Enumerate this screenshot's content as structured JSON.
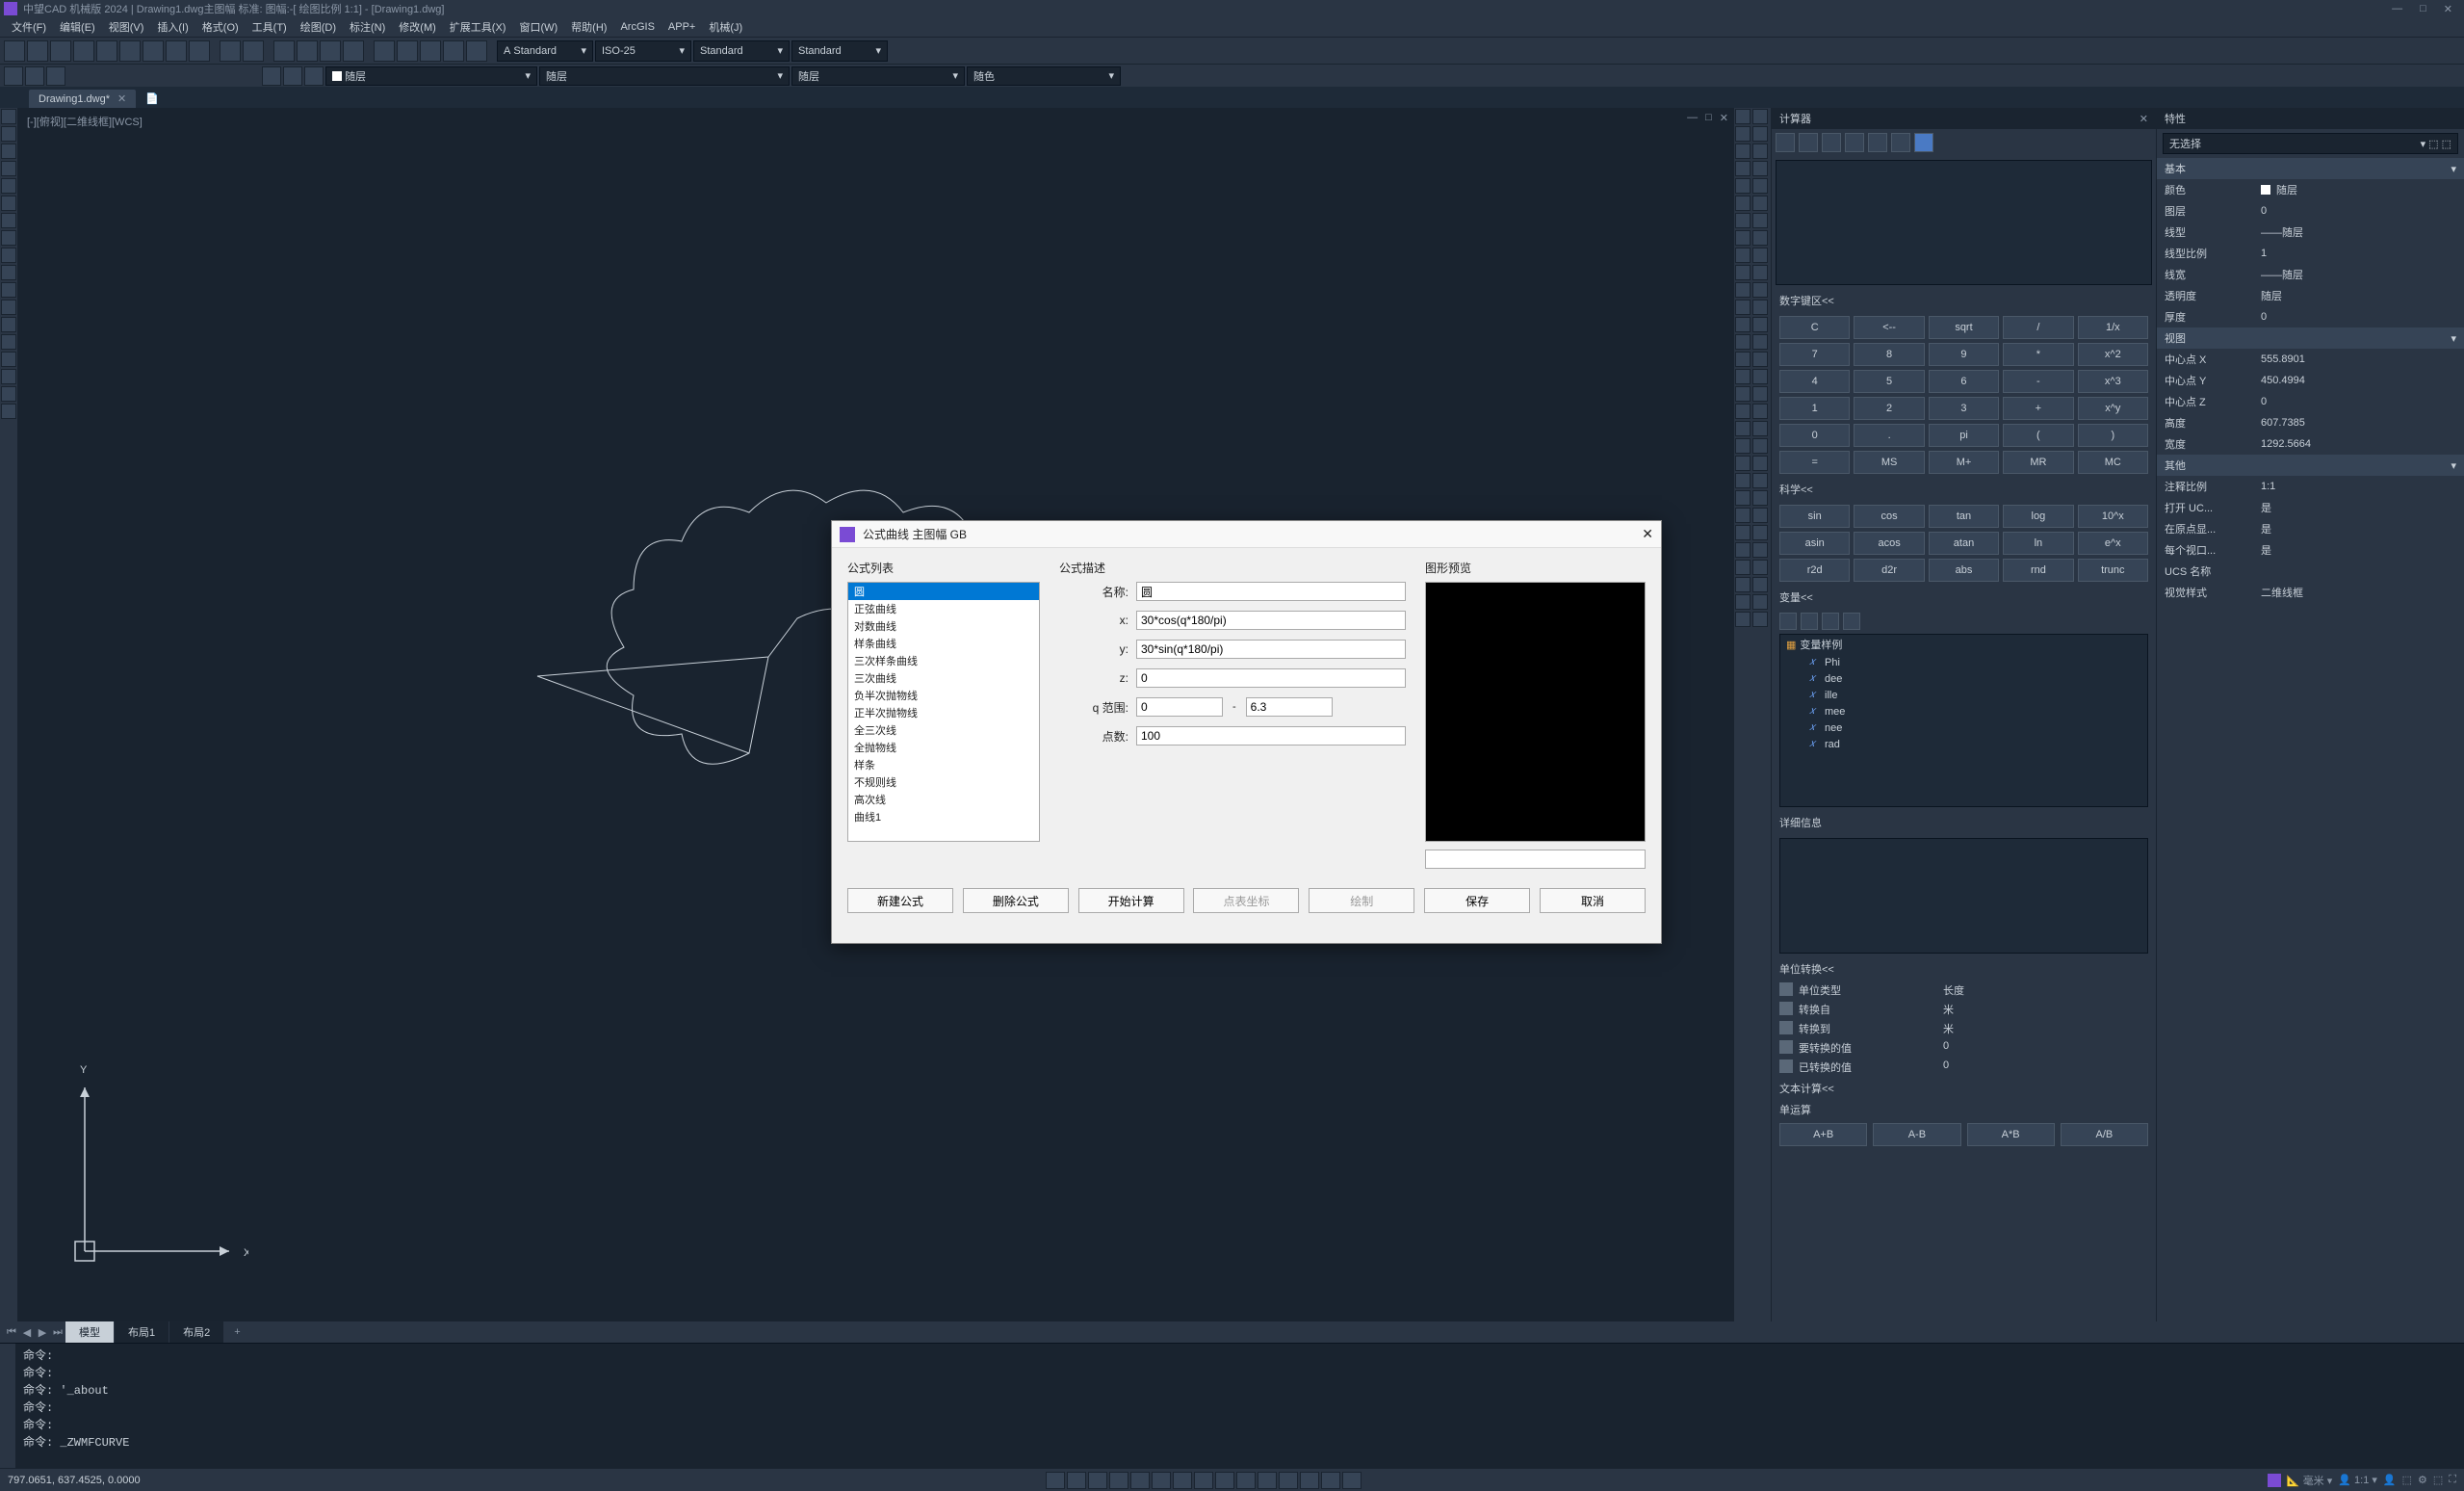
{
  "app": {
    "title": "中望CAD 机械版 2024 | Drawing1.dwg主图幅  标准: 图幅:-[ 绘图比例 1:1] - [Drawing1.dwg]"
  },
  "menus": [
    "文件(F)",
    "编辑(E)",
    "视图(V)",
    "插入(I)",
    "格式(O)",
    "工具(T)",
    "绘图(D)",
    "标注(N)",
    "修改(M)",
    "扩展工具(X)",
    "窗口(W)",
    "帮助(H)",
    "ArcGIS",
    "APP+",
    "机械(J)"
  ],
  "toolbar_combos": {
    "style1": "Standard",
    "style2": "ISO-25",
    "style3": "Standard",
    "style4": "Standard",
    "layer": "随层",
    "ltype": "随层",
    "lweight": "随层",
    "color": "随色"
  },
  "doc_tab": "Drawing1.dwg*",
  "canvas_label": "[-][俯视][二维线框][WCS]",
  "ucs": {
    "x": "X",
    "y": "Y"
  },
  "bottom_tabs": [
    "模型",
    "布局1",
    "布局2"
  ],
  "cmd_lines": [
    "命令:",
    "命令:",
    "命令: '_about",
    "命令:",
    "命令:",
    "命令: _ZWMFCURVE"
  ],
  "status": {
    "coords": "797.0651, 637.4525, 0.0000",
    "unit": "毫米",
    "scale": "1:1"
  },
  "calc": {
    "title": "计算器",
    "numpad_hdr": "数字键区<<",
    "rows": [
      [
        "C",
        "<--",
        "sqrt",
        "/",
        "1/x"
      ],
      [
        "7",
        "8",
        "9",
        "*",
        "x^2"
      ],
      [
        "4",
        "5",
        "6",
        "-",
        "x^3"
      ],
      [
        "1",
        "2",
        "3",
        "+",
        "x^y"
      ],
      [
        "0",
        ".",
        "pi",
        "(",
        ")"
      ],
      [
        "=",
        "MS",
        "M+",
        "MR",
        "MC"
      ]
    ],
    "sci_hdr": "科学<<",
    "sci_rows": [
      [
        "sin",
        "cos",
        "tan",
        "log",
        "10^x"
      ],
      [
        "asin",
        "acos",
        "atan",
        "ln",
        "e^x"
      ],
      [
        "r2d",
        "d2r",
        "abs",
        "rnd",
        "trunc"
      ]
    ],
    "var_hdr": "变量<<",
    "var_root": "变量样例",
    "vars": [
      "Phi",
      "dee",
      "ille",
      "mee",
      "nee",
      "rad"
    ],
    "detail_hdr": "详细信息",
    "unit_hdr": "单位转换<<",
    "unit_rows": [
      {
        "label": "单位类型",
        "val": "长度"
      },
      {
        "label": "转换自",
        "val": "米"
      },
      {
        "label": "转换到",
        "val": "米"
      },
      {
        "label": "要转换的值",
        "val": "0"
      },
      {
        "label": "已转换的值",
        "val": "0"
      }
    ],
    "text_hdr": "文本计算<<",
    "text_sub": "单运算",
    "text_btns": [
      "A+B",
      "A-B",
      "A*B",
      "A/B"
    ]
  },
  "props": {
    "title": "特性",
    "selector": "无选择",
    "sections": {
      "basic": {
        "hdr": "基本",
        "rows": [
          {
            "label": "颜色",
            "val": "随层",
            "swatch": true
          },
          {
            "label": "图层",
            "val": "0"
          },
          {
            "label": "线型",
            "val": "——随层"
          },
          {
            "label": "线型比例",
            "val": "1"
          },
          {
            "label": "线宽",
            "val": "——随层"
          },
          {
            "label": "透明度",
            "val": "随层"
          },
          {
            "label": "厚度",
            "val": "0"
          }
        ]
      },
      "view": {
        "hdr": "视图",
        "rows": [
          {
            "label": "中心点 X",
            "val": "555.8901"
          },
          {
            "label": "中心点 Y",
            "val": "450.4994"
          },
          {
            "label": "中心点 Z",
            "val": "0"
          },
          {
            "label": "高度",
            "val": "607.7385"
          },
          {
            "label": "宽度",
            "val": "1292.5664"
          }
        ]
      },
      "other": {
        "hdr": "其他",
        "rows": [
          {
            "label": "注释比例",
            "val": "1:1"
          },
          {
            "label": "打开 UC...",
            "val": "是"
          },
          {
            "label": "在原点显...",
            "val": "是"
          },
          {
            "label": "每个视口...",
            "val": "是"
          },
          {
            "label": "UCS 名称",
            "val": ""
          },
          {
            "label": "视觉样式",
            "val": "二维线框"
          }
        ]
      }
    }
  },
  "dialog": {
    "title": "公式曲线 主图幅 GB",
    "list_hdr": "公式列表",
    "desc_hdr": "公式描述",
    "preview_hdr": "图形预览",
    "items": [
      "圆",
      "正弦曲线",
      "对数曲线",
      "样条曲线",
      "三次样条曲线",
      "三次曲线",
      "负半次抛物线",
      "正半次抛物线",
      "全三次线",
      "全抛物线",
      "样条",
      "不规则线",
      "高次线",
      "曲线1"
    ],
    "name_lbl": "名称:",
    "name_val": "圆",
    "x_lbl": "x:",
    "x_val": "30*cos(q*180/pi)",
    "y_lbl": "y:",
    "y_val": "30*sin(q*180/pi)",
    "z_lbl": "z:",
    "z_val": "0",
    "q_lbl": "q 范围:",
    "q_from": "0",
    "q_to": "6.3",
    "pts_lbl": "点数:",
    "pts_val": "100",
    "btns": [
      "新建公式",
      "删除公式",
      "开始计算",
      "点表坐标",
      "绘制",
      "保存",
      "取消"
    ]
  }
}
